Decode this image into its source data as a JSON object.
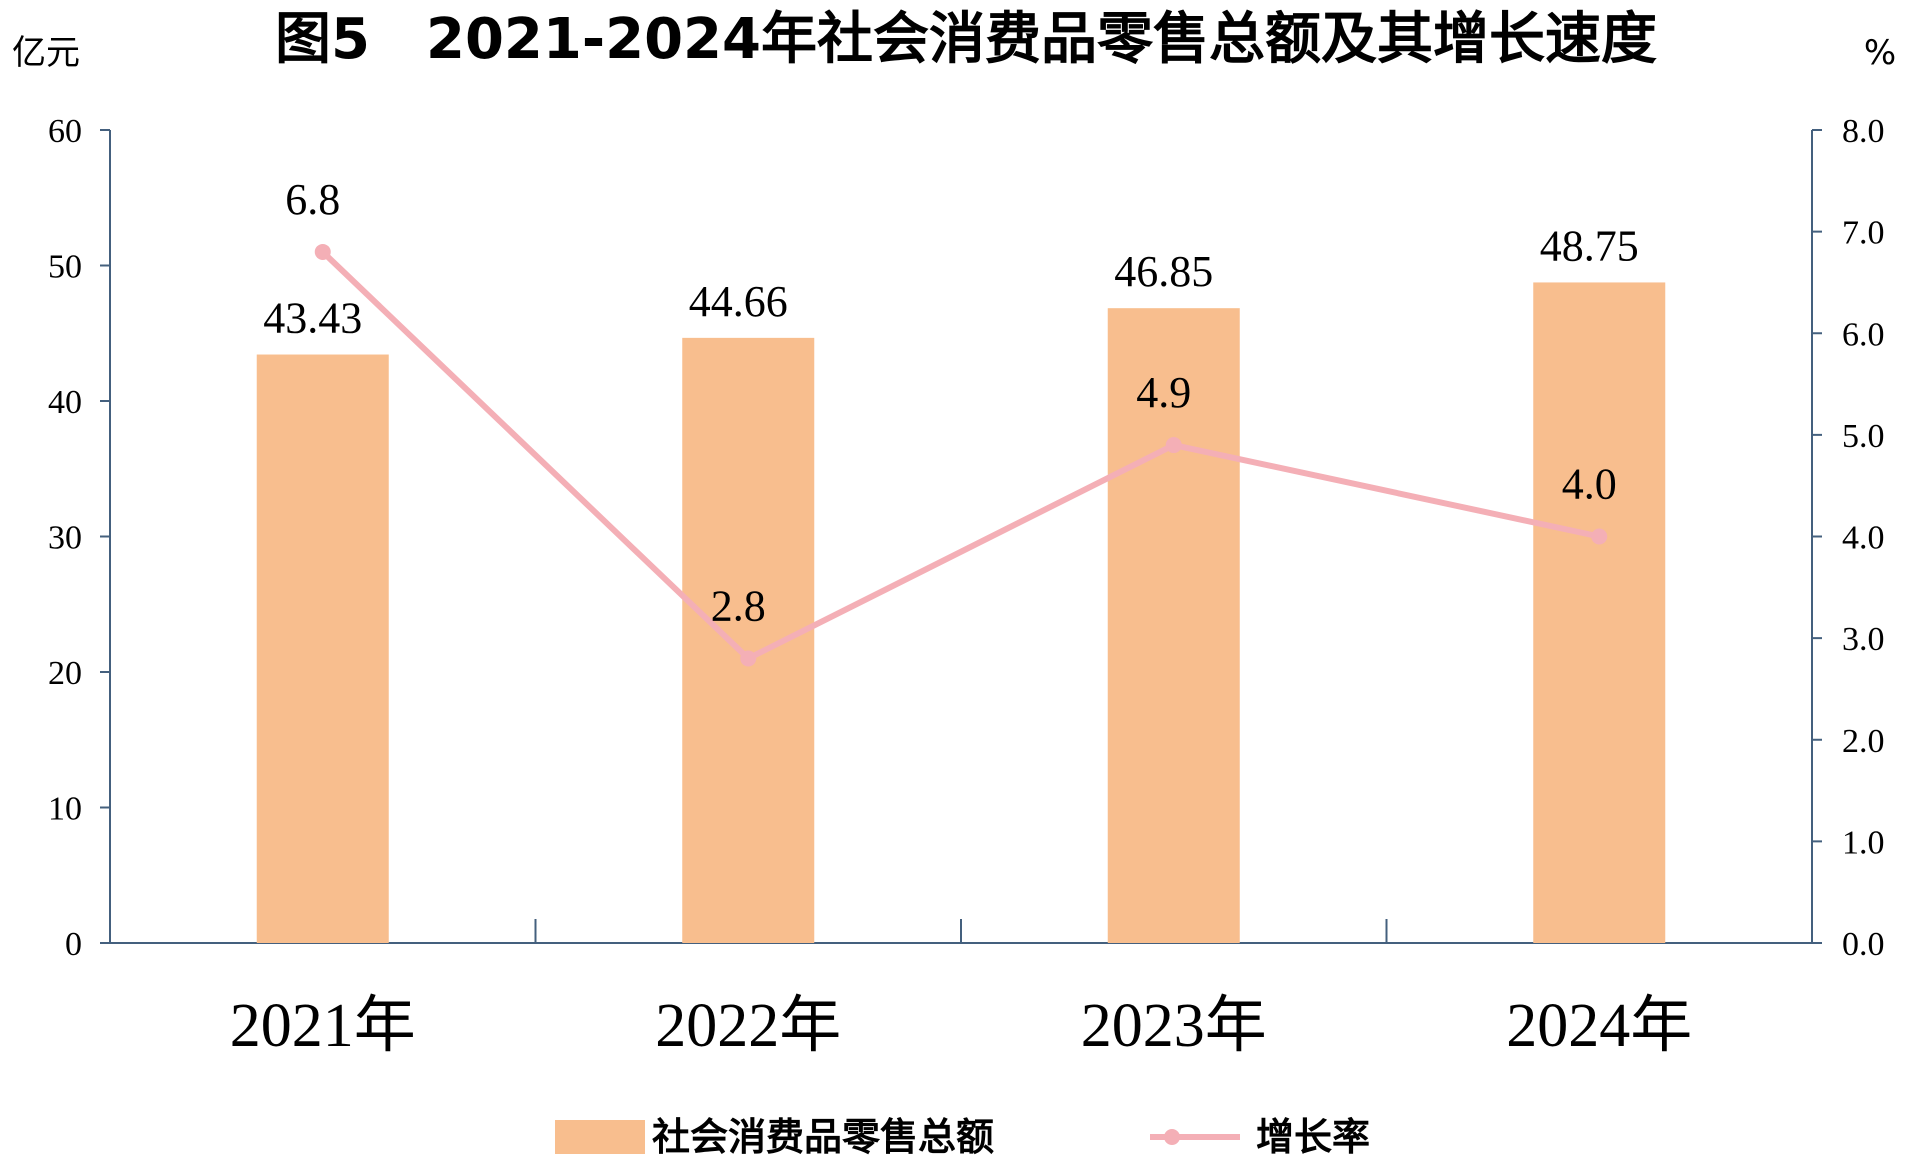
{
  "chart_data": {
    "type": "bar",
    "title": "图5　2021-2024年社会消费品零售总额及其增长速度",
    "y_left_unit": "亿元",
    "y_right_unit": "%",
    "categories": [
      "2021年",
      "2022年",
      "2023年",
      "2024年"
    ],
    "series": [
      {
        "name": "社会消费品零售总额",
        "type": "bar",
        "axis": "left",
        "values": [
          43.43,
          44.66,
          46.85,
          48.75
        ],
        "labels": [
          "43.43",
          "44.66",
          "46.85",
          "48.75"
        ],
        "color": "#F8BE8E"
      },
      {
        "name": "增长率",
        "type": "line",
        "axis": "right",
        "values": [
          6.8,
          2.8,
          4.9,
          4.0
        ],
        "labels": [
          "6.8",
          "2.8",
          "4.9",
          "4.0"
        ],
        "color": "#F4AFB6"
      }
    ],
    "y_left": {
      "range": [
        0,
        60
      ],
      "ticks": [
        "0",
        "10",
        "20",
        "30",
        "40",
        "50",
        "60"
      ]
    },
    "y_right": {
      "range": [
        0,
        8
      ],
      "ticks": [
        "0.0",
        "1.0",
        "2.0",
        "3.0",
        "4.0",
        "5.0",
        "6.0",
        "7.0",
        "8.0"
      ]
    },
    "axis_color": "#44607E",
    "grid": false,
    "legend_position": "bottom"
  }
}
